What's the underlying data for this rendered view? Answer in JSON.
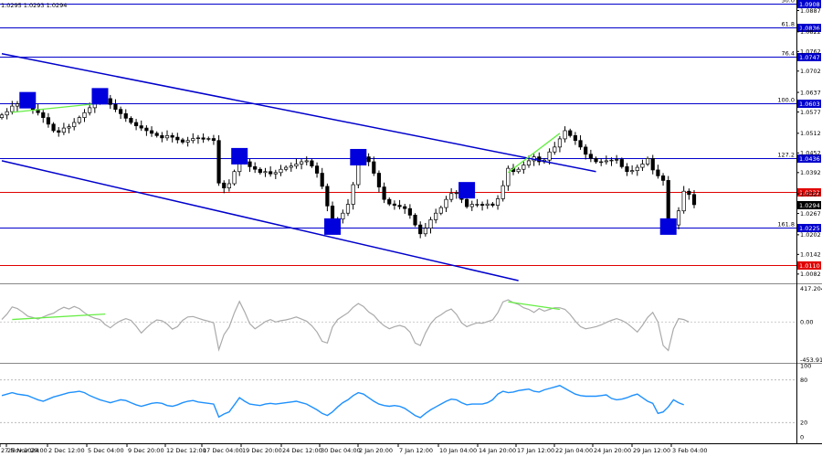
{
  "header": {
    "ohlc_text": "1.0295 1.0293 1.0294"
  },
  "colors": {
    "background": "#ffffff",
    "candle": "#000000",
    "channel": "#0000cc",
    "fib_line": "#0000cc",
    "red_line": "#e00000",
    "divergence": "#66ee44",
    "marker": "#0000dd",
    "cci": "#aaaaaa",
    "rsi": "#1e90ff"
  },
  "chart_data": [
    {
      "type": "candlestick",
      "title": "",
      "ylim": [
        1.0062,
        1.0908
      ],
      "y_ticks": [
        "1.0908",
        "1.0887",
        "1.0822",
        "1.0762",
        "1.0702",
        "1.0637",
        "1.0577",
        "1.0512",
        "1.0452",
        "1.0392",
        "1.0327",
        "1.0267",
        "1.0202",
        "1.0142",
        "1.0082"
      ],
      "x_tick_labels": [
        "27 Nov 2024",
        "27 Nov 20:00",
        "2 Dec 12:00",
        "5 Dec 04:00",
        "9 Dec 20:00",
        "12 Dec 12:00",
        "17 Dec 04:00",
        "19 Dec 20:00",
        "24 Dec 12:00",
        "30 Dec 04:00",
        "2 Jan 20:00",
        "7 Jan 12:00",
        "10 Jan 04:00",
        "14 Jan 20:00",
        "17 Jan 12:00",
        "22 Jan 04:00",
        "24 Jan 20:00",
        "29 Jan 12:00",
        "3 Feb 04:00"
      ],
      "fib_levels": [
        {
          "label": "50.0",
          "price": 1.0908,
          "box": "1.0908"
        },
        {
          "label": "61.8",
          "price": 1.0836,
          "box": "1.0836"
        },
        {
          "label": "76.4",
          "price": 1.0747,
          "box": "1.0747"
        },
        {
          "label": "100.0",
          "price": 1.0603,
          "box": "1.0603"
        },
        {
          "label": "127.2",
          "price": 1.0436,
          "box": "1.0436"
        },
        {
          "label": "161.8",
          "price": 1.0225,
          "box": "1.0225"
        }
      ],
      "red_levels": [
        {
          "price": 1.0332,
          "box": "1.0332"
        },
        {
          "price": 1.011,
          "box": "1.0110"
        }
      ],
      "current_price": {
        "price": 1.0294,
        "box": "1.0294"
      },
      "close_series": [
        1.0568,
        1.0578,
        1.0595,
        1.0602,
        1.061,
        1.0598,
        1.0585,
        1.0575,
        1.056,
        1.054,
        1.052,
        1.0515,
        1.0528,
        1.0532,
        1.0545,
        1.056,
        1.0575,
        1.059,
        1.061,
        1.0625,
        1.0618,
        1.06,
        1.0585,
        1.0572,
        1.0558,
        1.0545,
        1.0535,
        1.0528,
        1.052,
        1.0512,
        1.0505,
        1.0498,
        1.0505,
        1.05,
        1.0492,
        1.0485,
        1.049,
        1.0496,
        1.0498,
        1.0494,
        1.0496,
        1.049,
        1.036,
        1.0345,
        1.0358,
        1.0395,
        1.0442,
        1.0425,
        1.041,
        1.0402,
        1.0392,
        1.0395,
        1.0388,
        1.0392,
        1.0402,
        1.0408,
        1.0412,
        1.0418,
        1.0425,
        1.0428,
        1.0412,
        1.039,
        1.035,
        1.029,
        1.0238,
        1.025,
        1.0268,
        1.0295,
        1.0355,
        1.0422,
        1.044,
        1.0425,
        1.039,
        1.0348,
        1.031,
        1.0296,
        1.0292,
        1.0288,
        1.0282,
        1.0262,
        1.0232,
        1.0205,
        1.0222,
        1.0248,
        1.0268,
        1.0285,
        1.031,
        1.0328,
        1.033,
        1.031,
        1.0288,
        1.0295,
        1.0295,
        1.0292,
        1.0296,
        1.0292,
        1.0312,
        1.0352,
        1.0405,
        1.0395,
        1.0402,
        1.0415,
        1.0428,
        1.044,
        1.0425,
        1.043,
        1.0455,
        1.047,
        1.0495,
        1.052,
        1.0505,
        1.049,
        1.047,
        1.0448,
        1.0435,
        1.0425,
        1.0425,
        1.0428,
        1.043,
        1.0432,
        1.041,
        1.0395,
        1.0398,
        1.0408,
        1.0418,
        1.0435,
        1.04,
        1.0382,
        1.0368,
        1.0222,
        1.0232,
        1.0275,
        1.0335,
        1.0325,
        1.0294
      ],
      "channel_lines": [
        {
          "from": [
            0,
            1.0755
          ],
          "to": [
            115,
            1.0395
          ]
        },
        {
          "from": [
            0,
            1.0428
          ],
          "to": [
            100,
            1.0062
          ]
        }
      ],
      "divergence_lines": [
        {
          "from": [
            2,
            1.0576
          ],
          "to": [
            20,
            1.0605
          ]
        },
        {
          "from": [
            98,
            1.0392
          ],
          "to": [
            108,
            1.0512
          ]
        }
      ],
      "markers": [
        {
          "i": 5,
          "price": 1.0613
        },
        {
          "i": 19,
          "price": 1.0625
        },
        {
          "i": 46,
          "price": 1.0442
        },
        {
          "i": 64,
          "price": 1.0227
        },
        {
          "i": 69,
          "price": 1.0439
        },
        {
          "i": 90,
          "price": 1.0338
        },
        {
          "i": 129,
          "price": 1.0227
        }
      ]
    },
    {
      "type": "line",
      "name": "cci_panel",
      "ylim": [
        -453.913,
        417.2044
      ],
      "y_ticks": [
        "417.2044",
        "0.00",
        "-453.913"
      ],
      "values": [
        30,
        95,
        180,
        160,
        120,
        70,
        55,
        35,
        60,
        85,
        105,
        145,
        175,
        155,
        185,
        160,
        110,
        70,
        45,
        30,
        -30,
        -70,
        -20,
        15,
        40,
        20,
        -50,
        -130,
        -70,
        -15,
        25,
        15,
        -25,
        -85,
        -55,
        20,
        60,
        65,
        45,
        25,
        10,
        -10,
        -330,
        -150,
        -60,
        110,
        245,
        120,
        -20,
        -80,
        -40,
        5,
        30,
        0,
        15,
        25,
        40,
        60,
        35,
        10,
        -45,
        -120,
        -230,
        -250,
        -60,
        30,
        70,
        110,
        175,
        220,
        185,
        120,
        80,
        10,
        -45,
        -80,
        -55,
        -40,
        -60,
        -120,
        -250,
        -280,
        -130,
        -20,
        50,
        85,
        130,
        155,
        90,
        -10,
        -55,
        -30,
        -10,
        -15,
        5,
        25,
        110,
        240,
        265,
        230,
        210,
        170,
        150,
        115,
        160,
        130,
        150,
        170,
        170,
        150,
        90,
        10,
        -55,
        -80,
        -70,
        -55,
        -35,
        -5,
        20,
        40,
        20,
        -15,
        -65,
        -120,
        -40,
        55,
        115,
        0,
        -280,
        -340,
        -80,
        40,
        30,
        0
      ]
    },
    {
      "type": "line",
      "name": "rsi_panel",
      "ylim": [
        0,
        100
      ],
      "y_ticks": [
        "100",
        "80",
        "20",
        "0"
      ],
      "values": [
        58,
        60,
        62,
        60,
        59,
        58,
        55,
        52,
        50,
        53,
        56,
        58,
        60,
        62,
        63,
        64,
        62,
        58,
        55,
        52,
        50,
        48,
        50,
        52,
        51,
        48,
        45,
        43,
        45,
        47,
        48,
        47,
        44,
        43,
        45,
        48,
        50,
        51,
        49,
        48,
        47,
        46,
        28,
        32,
        35,
        45,
        55,
        50,
        46,
        45,
        44,
        46,
        47,
        46,
        47,
        48,
        49,
        50,
        48,
        46,
        42,
        38,
        33,
        30,
        35,
        42,
        48,
        52,
        58,
        62,
        60,
        55,
        50,
        46,
        44,
        43,
        44,
        43,
        40,
        35,
        30,
        27,
        33,
        38,
        42,
        46,
        50,
        53,
        52,
        48,
        45,
        46,
        46,
        46,
        48,
        52,
        60,
        64,
        62,
        63,
        65,
        66,
        67,
        64,
        63,
        66,
        68,
        70,
        72,
        68,
        64,
        60,
        58,
        57,
        57,
        57,
        58,
        59,
        54,
        52,
        53,
        55,
        58,
        60,
        55,
        50,
        47,
        33,
        35,
        42,
        52,
        48,
        45
      ]
    }
  ]
}
